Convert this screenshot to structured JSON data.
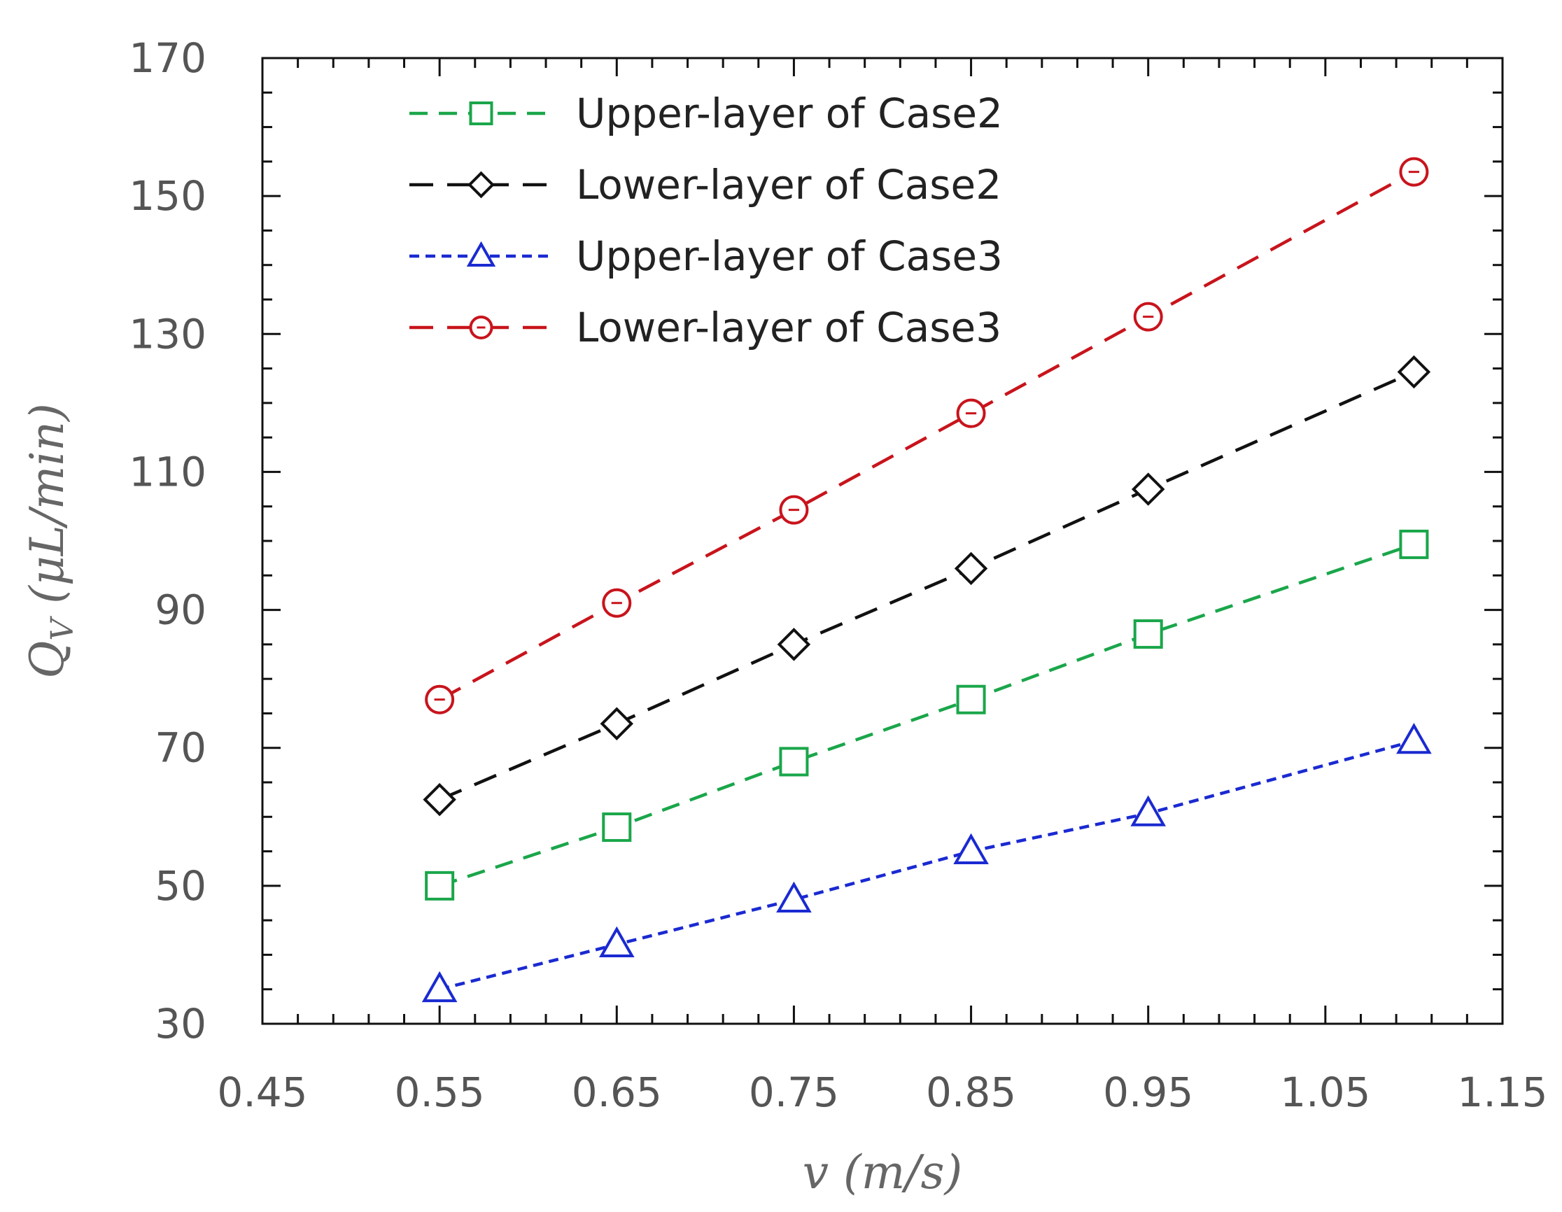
{
  "chart_data": {
    "type": "line",
    "xlabel": "v (m/s)",
    "ylabel": "Q_V (μL/min)",
    "ylabel_main": "Q",
    "ylabel_sub": "V",
    "ylabel_rest": " (μL/min)",
    "xlim": [
      0.45,
      1.15
    ],
    "ylim": [
      30,
      170
    ],
    "x_ticks": [
      0.45,
      0.55,
      0.65,
      0.75,
      0.85,
      0.95,
      1.05,
      1.15
    ],
    "x_tick_labels": [
      "0.45",
      "0.55",
      "0.65",
      "0.75",
      "0.85",
      "0.95",
      "1.05",
      "1.15"
    ],
    "y_ticks": [
      30,
      50,
      70,
      90,
      110,
      130,
      150,
      170
    ],
    "y_tick_labels": [
      "30",
      "50",
      "70",
      "90",
      "110",
      "130",
      "150",
      "170"
    ],
    "grid": false,
    "legend_position": "top-left",
    "x": [
      0.55,
      0.65,
      0.75,
      0.85,
      0.95,
      1.1
    ],
    "series": [
      {
        "name": "Upper-layer of Case2",
        "values": [
          50,
          58.5,
          68,
          77,
          86.5,
          99.5
        ],
        "color": "#1aa64a",
        "marker": "square",
        "dash": "medium"
      },
      {
        "name": "Lower-layer of Case2",
        "values": [
          62.5,
          73.5,
          85,
          96,
          107.5,
          124.5
        ],
        "color": "#111111",
        "marker": "diamond",
        "dash": "long"
      },
      {
        "name": "Upper-layer of Case3",
        "values": [
          35,
          41.5,
          48,
          55,
          60.5,
          71
        ],
        "color": "#1a2ad1",
        "marker": "triangle",
        "dash": "short"
      },
      {
        "name": "Lower-layer of Case3",
        "values": [
          77,
          91,
          104.5,
          118.5,
          132.5,
          153.5
        ],
        "color": "#c8141c",
        "marker": "circle",
        "dash": "long"
      }
    ]
  }
}
